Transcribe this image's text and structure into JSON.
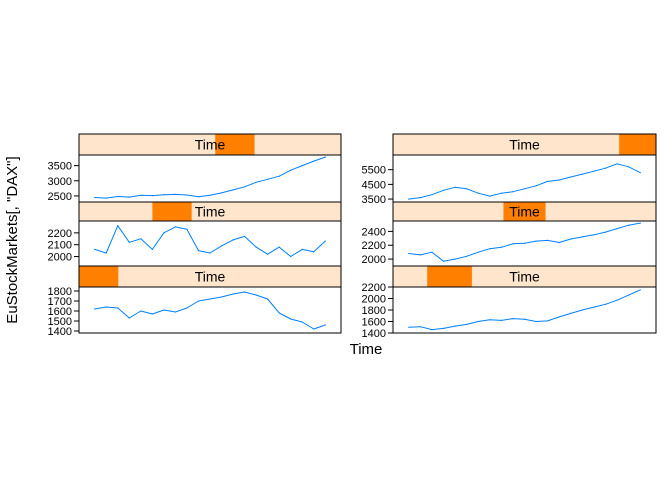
{
  "chart_data": {
    "type": "line",
    "layout": "trellis 2 columns x 3 rows, strips on top, shingle-conditioned Time",
    "xlabel": "Time",
    "ylabel": "EuStockMarkets[, \"DAX\"]",
    "strip_label": "Time",
    "colors": {
      "line": "#0080ff",
      "strip_bg": "#ffe5cc",
      "strip_highlight": "#ff7f00",
      "frame": "#000000"
    },
    "x_tick_labels_shown": false,
    "grid": false,
    "panels": [
      {
        "id": "p1",
        "shingle_fraction": [
          0.0,
          0.15
        ],
        "ylim": [
          1380,
          1840
        ],
        "yticks": [
          1400,
          1500,
          1600,
          1700,
          1800
        ],
        "x": [
          1991.5,
          1991.6,
          1991.7,
          1991.8,
          1991.9,
          1992.0,
          1992.1,
          1992.2,
          1992.3,
          1992.4,
          1992.5,
          1992.6,
          1992.7,
          1992.8,
          1992.9,
          1993.0,
          1993.1,
          1993.2,
          1993.3,
          1993.4,
          1993.5
        ],
        "values": [
          1620,
          1640,
          1630,
          1530,
          1600,
          1570,
          1610,
          1590,
          1630,
          1700,
          1720,
          1740,
          1770,
          1790,
          1760,
          1720,
          1580,
          1520,
          1490,
          1420,
          1460
        ]
      },
      {
        "id": "p2",
        "shingle_fraction": [
          0.13,
          0.3
        ],
        "ylim": [
          1400,
          2200
        ],
        "yticks": [
          1400,
          1600,
          1800,
          2000,
          2200
        ],
        "x": [
          1992.0,
          1992.1,
          1992.2,
          1992.3,
          1992.4,
          1992.5,
          1992.6,
          1992.7,
          1992.8,
          1992.9,
          1993.0,
          1993.1,
          1993.2,
          1993.3,
          1993.4,
          1993.5,
          1993.6,
          1993.7,
          1993.8,
          1993.9,
          1994.0
        ],
        "values": [
          1500,
          1510,
          1460,
          1480,
          1520,
          1550,
          1600,
          1630,
          1620,
          1650,
          1640,
          1600,
          1610,
          1680,
          1740,
          1800,
          1850,
          1900,
          1970,
          2060,
          2150
        ]
      },
      {
        "id": "p3",
        "shingle_fraction": [
          0.28,
          0.43
        ],
        "ylim": [
          1920,
          2300
        ],
        "yticks": [
          2000,
          2100,
          2200
        ],
        "x": [
          1993.0,
          1993.1,
          1993.2,
          1993.3,
          1993.4,
          1993.5,
          1993.6,
          1993.7,
          1993.8,
          1993.9,
          1994.0,
          1994.1,
          1994.2,
          1994.3,
          1994.4,
          1994.5,
          1994.6,
          1994.7,
          1994.8,
          1994.9,
          1995.0
        ],
        "values": [
          2060,
          2030,
          2260,
          2120,
          2150,
          2060,
          2200,
          2250,
          2230,
          2050,
          2030,
          2090,
          2140,
          2170,
          2080,
          2020,
          2080,
          2000,
          2060,
          2040,
          2130
        ]
      },
      {
        "id": "p4",
        "shingle_fraction": [
          0.42,
          0.58
        ],
        "ylim": [
          1900,
          2550
        ],
        "yticks": [
          2000,
          2200,
          2400
        ],
        "x": [
          1994.5,
          1994.6,
          1994.7,
          1994.8,
          1994.9,
          1995.0,
          1995.1,
          1995.2,
          1995.3,
          1995.4,
          1995.5,
          1995.6,
          1995.7,
          1995.8,
          1995.9,
          1996.0,
          1996.1,
          1996.2,
          1996.3,
          1996.4,
          1996.5
        ],
        "values": [
          2080,
          2060,
          2100,
          1970,
          2000,
          2040,
          2100,
          2150,
          2170,
          2220,
          2230,
          2260,
          2270,
          2240,
          2290,
          2320,
          2350,
          2390,
          2440,
          2490,
          2520
        ]
      },
      {
        "id": "p5",
        "shingle_fraction": [
          0.52,
          0.67
        ],
        "ylim": [
          2300,
          3850
        ],
        "yticks": [
          2500,
          3000,
          3500
        ],
        "x": [
          1995.8,
          1995.9,
          1996.0,
          1996.1,
          1996.2,
          1996.3,
          1996.4,
          1996.5,
          1996.6,
          1996.7,
          1996.8,
          1996.9,
          1997.0,
          1997.1,
          1997.2,
          1997.3,
          1997.4,
          1997.5,
          1997.6,
          1997.7,
          1997.8
        ],
        "values": [
          2450,
          2430,
          2480,
          2460,
          2520,
          2510,
          2540,
          2550,
          2530,
          2470,
          2520,
          2600,
          2700,
          2800,
          2950,
          3050,
          3150,
          3350,
          3500,
          3650,
          3780
        ]
      },
      {
        "id": "p6",
        "shingle_fraction": [
          0.86,
          1.0
        ],
        "ylim": [
          3300,
          6500
        ],
        "yticks": [
          3500,
          4500,
          5500
        ],
        "x": [
          1997.0,
          1997.1,
          1997.2,
          1997.3,
          1997.4,
          1997.5,
          1997.6,
          1997.7,
          1997.8,
          1997.9,
          1998.0,
          1998.1,
          1998.2,
          1998.3,
          1998.4,
          1998.5,
          1998.6,
          1998.7,
          1998.8,
          1998.9,
          1999.0
        ],
        "values": [
          3500,
          3600,
          3800,
          4100,
          4300,
          4200,
          3900,
          3700,
          3900,
          4000,
          4200,
          4400,
          4700,
          4800,
          5000,
          5200,
          5400,
          5600,
          5900,
          5700,
          5300
        ]
      }
    ]
  }
}
